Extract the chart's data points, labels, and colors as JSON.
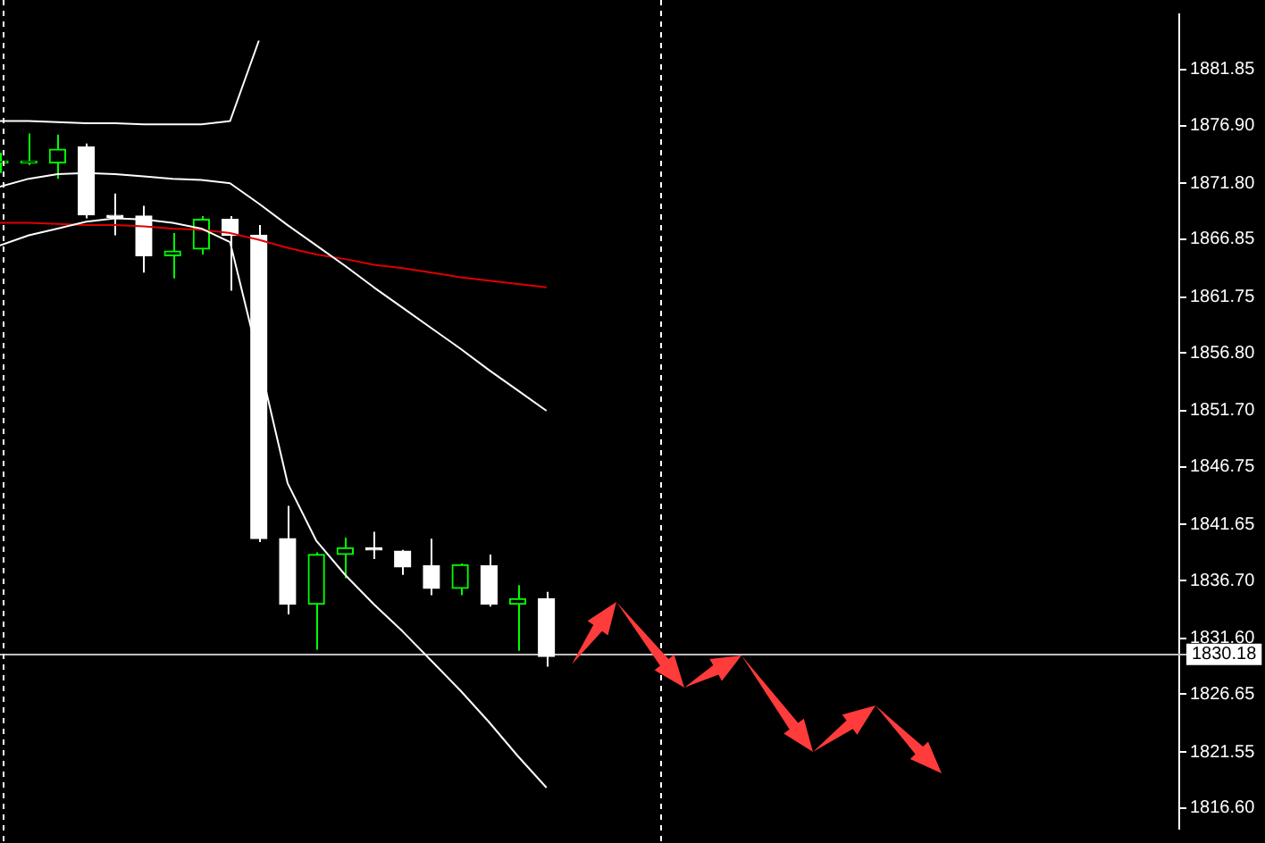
{
  "chart_data": {
    "type": "candlestick",
    "colors": [
      "#00ff00",
      "#00ff00",
      "#00ff00",
      "#ffffff",
      "#ffffff",
      "#ffffff",
      "#00ff00",
      "#00ff00",
      "#ffffff",
      "#ffffff",
      "#ffffff",
      "#00ff00",
      "#00ff00",
      "#ffffff",
      "#ffffff",
      "#ffffff",
      "#00ff00",
      "#ffffff",
      "#00ff00",
      "#ffffff",
      null,
      null,
      null,
      null,
      null,
      null,
      null,
      null,
      null,
      null,
      null,
      null,
      null,
      null,
      null,
      null,
      null,
      null,
      null,
      null,
      null,
      null
    ],
    "categories": [
      null,
      null,
      null,
      null,
      null,
      null,
      null,
      null,
      null,
      null,
      null,
      null,
      null,
      null,
      null,
      null,
      null,
      null,
      null,
      null,
      null,
      null,
      null,
      null,
      null,
      null,
      null,
      null,
      null,
      null,
      null,
      null,
      null,
      null,
      null,
      null,
      null,
      null,
      null,
      null,
      null,
      null
    ],
    "ohlc": [
      [
        1873.6,
        1874.5,
        1872.7,
        1873.6
      ],
      [
        1873.6,
        1876.2,
        1873.4,
        1873.7
      ],
      [
        1873.6,
        1876.1,
        1872.2,
        1874.8
      ],
      [
        1875.0,
        1875.3,
        1868.7,
        1869.0
      ],
      [
        1868.9,
        1870.9,
        1867.2,
        1868.8
      ],
      [
        1868.9,
        1869.8,
        1863.9,
        1865.4
      ],
      [
        1865.4,
        1867.4,
        1863.4,
        1865.8
      ],
      [
        1866.0,
        1868.9,
        1865.5,
        1868.6
      ],
      [
        1868.6,
        1868.9,
        1862.3,
        1867.2
      ],
      [
        1867.2,
        1868.1,
        1840.1,
        1840.4
      ],
      [
        1840.4,
        1843.3,
        1833.7,
        1834.6
      ],
      [
        1834.6,
        1839.2,
        1830.6,
        1839.0
      ],
      [
        1839.0,
        1840.5,
        1836.9,
        1839.6
      ],
      [
        1839.6,
        1841.0,
        1838.6,
        1839.4
      ],
      [
        1839.3,
        1839.4,
        1837.2,
        1837.9
      ],
      [
        1838.0,
        1840.4,
        1835.4,
        1836.0
      ],
      [
        1836.0,
        1838.2,
        1835.4,
        1838.1
      ],
      [
        1838.0,
        1839.0,
        1834.4,
        1834.6
      ],
      [
        1834.6,
        1836.3,
        1830.5,
        1835.1
      ],
      [
        1835.1,
        1835.7,
        1829.1,
        1830.0
      ],
      null,
      null,
      null,
      null,
      null,
      null,
      null,
      null,
      null,
      null,
      null,
      null,
      null,
      null,
      null,
      null,
      null,
      null,
      null,
      null,
      null,
      null
    ],
    "series": [
      {
        "type": "line",
        "color": "#ffffff",
        "values": [
          1877.3,
          1877.3,
          1877.2,
          1877.1,
          1877.1,
          1877.0,
          1877.0,
          1877.0,
          1877.3,
          1884.4,
          null,
          null,
          null,
          null,
          null,
          null,
          null,
          null,
          null,
          null,
          null,
          null,
          null,
          null,
          null,
          null,
          null,
          null,
          null,
          null,
          null,
          null,
          null,
          null,
          null,
          null,
          null,
          null,
          null,
          null,
          null,
          null
        ]
      },
      {
        "type": "line",
        "color": "#ffffff",
        "values": [
          1871.5,
          1872.2,
          1872.6,
          1872.7,
          1872.6,
          1872.4,
          1872.2,
          1872.1,
          1871.8,
          1870.0,
          1868.1,
          1866.3,
          1864.5,
          1862.6,
          1860.8,
          1859.0,
          1857.2,
          1855.3,
          1853.5,
          1851.7,
          null,
          null,
          null,
          null,
          null,
          null,
          null,
          null,
          null,
          null,
          null,
          null,
          null,
          null,
          null,
          null,
          null,
          null,
          null,
          null,
          null,
          null
        ]
      },
      {
        "type": "line",
        "color": "#ffffff",
        "values": [
          1866.3,
          1867.2,
          1867.8,
          1868.4,
          1868.7,
          1868.6,
          1868.3,
          1867.8,
          1866.6,
          1856.2,
          1845.3,
          1840.2,
          1837.2,
          1834.6,
          1832.2,
          1829.6,
          1827.0,
          1824.2,
          1821.2,
          1818.4,
          null,
          null,
          null,
          null,
          null,
          null,
          null,
          null,
          null,
          null,
          null,
          null,
          null,
          null,
          null,
          null,
          null,
          null,
          null,
          null,
          null,
          null
        ]
      },
      {
        "type": "line",
        "color": "#e00000",
        "values": [
          1868.3,
          1868.3,
          1868.2,
          1868.1,
          1868.1,
          1868.0,
          1867.8,
          1867.7,
          1867.4,
          1866.8,
          1866.1,
          1865.5,
          1865.1,
          1864.6,
          1864.3,
          1863.9,
          1863.5,
          1863.2,
          1862.9,
          1862.6,
          null,
          null,
          null,
          null,
          null,
          null,
          null,
          null,
          null,
          null,
          null,
          null,
          null,
          null,
          null,
          null,
          null,
          null,
          null,
          null,
          null,
          null
        ]
      }
    ],
    "ylim": [
      1814.77,
      1886.73
    ],
    "yticks": [
      {
        "value": 1816.6,
        "label": "1816.60"
      },
      1821.55,
      1826.65,
      {
        "value": 1831.6,
        "label": "1831.60"
      },
      {
        "value": 1836.7,
        "label": "1836.70"
      },
      1841.65,
      1846.75,
      {
        "value": 1851.7,
        "label": "1851.70"
      },
      {
        "value": 1856.8,
        "label": "1856.80"
      },
      1861.75,
      1866.85,
      {
        "value": 1871.8,
        "label": "1871.80"
      },
      {
        "value": 1876.9,
        "label": "1876.90"
      },
      1881.85
    ],
    "ref_lines": [
      {
        "axis": "y",
        "value": 1830.18,
        "label": "1830.18",
        "color": "#c0c0c0"
      }
    ],
    "tick_labels": "y"
  }
}
